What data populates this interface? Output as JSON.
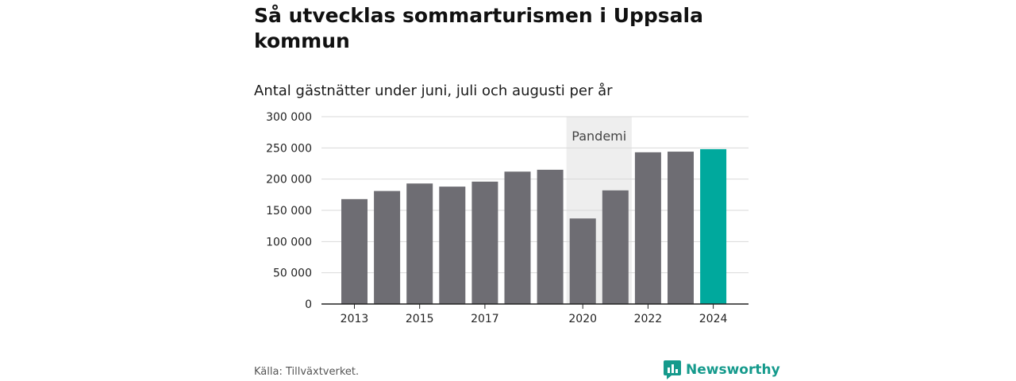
{
  "title": "Så utvecklas sommarturismen i Uppsala kommun",
  "subtitle": "Antal gästnätter under juni, juli och augusti per år",
  "source": "Källa: Tillväxtverket.",
  "brand": "Newsworthy",
  "colors": {
    "bar": "#6e6d73",
    "highlight": "#00a99d",
    "band": "#eeeeee",
    "grid": "#d9d9d9",
    "brand": "#159a8c"
  },
  "chart_data": {
    "type": "bar",
    "categories": [
      "2013",
      "2014",
      "2015",
      "2016",
      "2017",
      "2018",
      "2019",
      "2020",
      "2021",
      "2022",
      "2023",
      "2024"
    ],
    "values": [
      168000,
      181000,
      193000,
      188000,
      196000,
      212000,
      215000,
      137000,
      182000,
      243000,
      244000,
      248000
    ],
    "highlight_index": 11,
    "xtick_labels": [
      "2013",
      "2015",
      "2017",
      "2020",
      "2022",
      "2024"
    ],
    "ytick_values": [
      0,
      50000,
      100000,
      150000,
      200000,
      250000,
      300000
    ],
    "ytick_labels": [
      "0",
      "50 000",
      "100 000",
      "150 000",
      "200 000",
      "250 000",
      "300 000"
    ],
    "ylim": [
      0,
      300000
    ],
    "grid": true,
    "annotation": {
      "label": "Pandemi",
      "from": "2020",
      "to": "2021"
    }
  }
}
